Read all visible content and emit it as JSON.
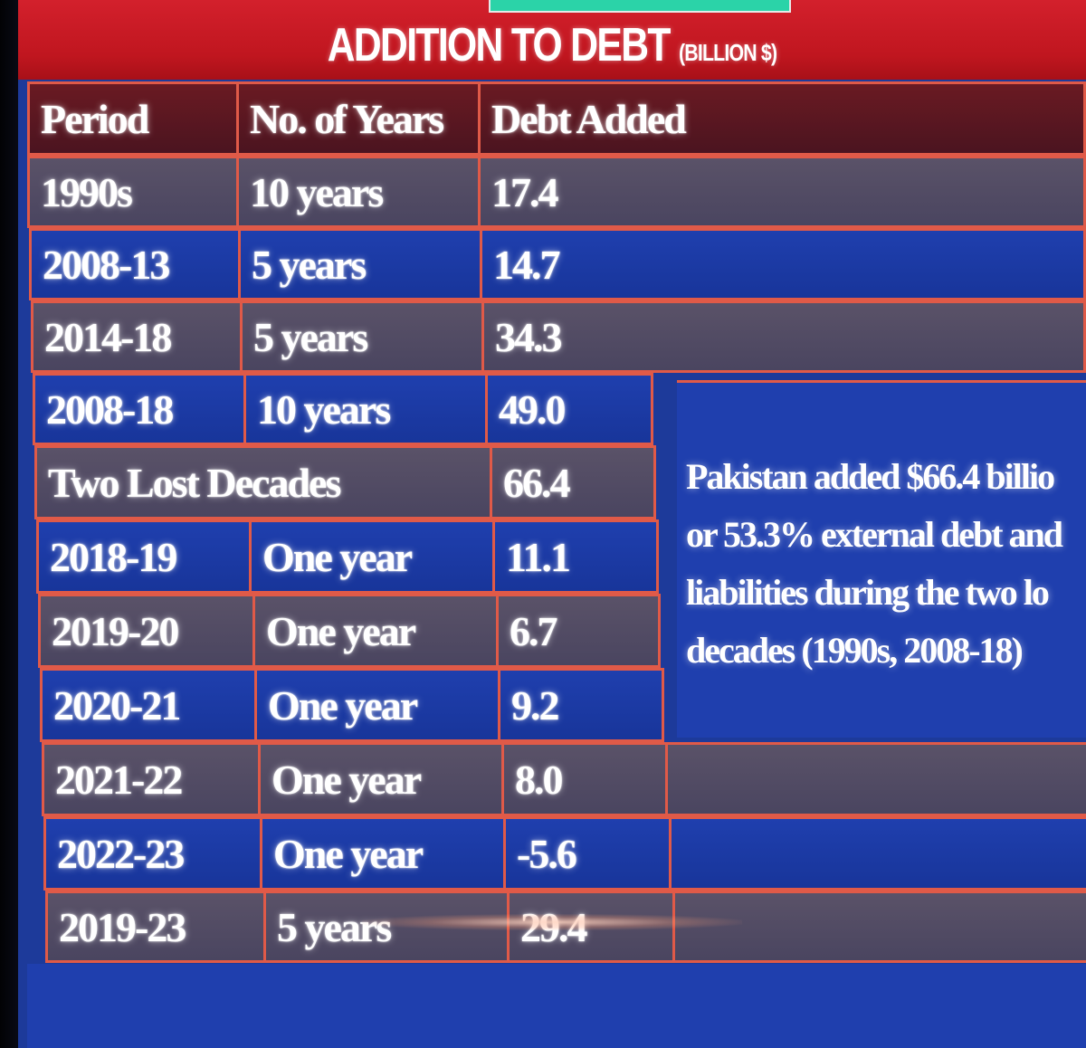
{
  "banner": {
    "title": "ADDITION TO DEBT",
    "subtitle": "(BILLION $)"
  },
  "table": {
    "headers": [
      "Period",
      "No. of Years",
      "Debt Added"
    ],
    "rows": [
      {
        "period": "1990s",
        "years": "10 years",
        "debt": "17.4"
      },
      {
        "period": "2008-13",
        "years": "5 years",
        "debt": "14.7"
      },
      {
        "period": "2014-18",
        "years": "5 years",
        "debt": "34.3"
      },
      {
        "period": "2008-18",
        "years": "10 years",
        "debt": "49.0"
      },
      {
        "period": "Two Lost Decades",
        "years": "",
        "debt": "66.4"
      },
      {
        "period": "2018-19",
        "years": "One year",
        "debt": "11.1"
      },
      {
        "period": "2019-20",
        "years": "One year",
        "debt": "6.7"
      },
      {
        "period": "2020-21",
        "years": "One year",
        "debt": "9.2"
      },
      {
        "period": "2021-22",
        "years": "One year",
        "debt": "8.0"
      },
      {
        "period": "2022-23",
        "years": "One year",
        "debt": "-5.6"
      },
      {
        "period": "2019-23",
        "years": "5 years",
        "debt": "29.4"
      }
    ]
  },
  "note": {
    "lines": [
      "Pakistan added $66.4 billio",
      "or 53.3% external debt and",
      "liabilities during the two lo",
      "decades (1990s, 2008-18)"
    ]
  }
}
